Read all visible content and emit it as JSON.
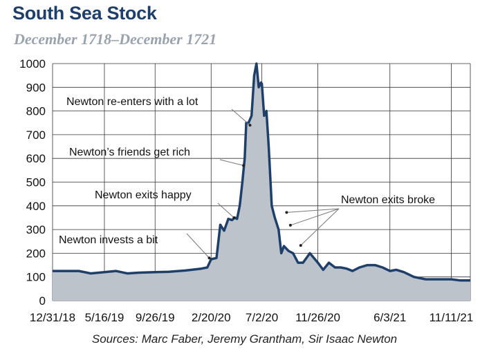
{
  "header": {
    "title": "South Sea Stock",
    "subtitle": "December 1718–December 1721"
  },
  "footer": {
    "source": "Sources: Marc Faber, Jeremy Grantham, Sir Isaac Newton"
  },
  "colors": {
    "title": "#1f3f6b",
    "line": "#1f3f6b",
    "fill": "#bdc3cb",
    "grid": "#333333"
  },
  "chart_data": {
    "type": "area",
    "xlabel": "",
    "ylabel": "",
    "ylim": [
      0,
      1000
    ],
    "yticks": [
      0,
      100,
      200,
      300,
      400,
      500,
      600,
      700,
      800,
      900,
      1000
    ],
    "xlim": [
      "1718-12-31",
      "1721-12-31"
    ],
    "xtick_labels": [
      "12/31/18",
      "5/16/19",
      "9/26/19",
      "2/20/20",
      "7/2/20",
      "11/26/20",
      "6/3/21",
      "11/11/21"
    ],
    "xtick_dates": [
      "1718-12-31",
      "1719-05-16",
      "1719-09-26",
      "1720-02-20",
      "1720-07-02",
      "1720-11-26",
      "1721-06-03",
      "1721-11-11"
    ],
    "grid": true,
    "series": [
      {
        "x": [
          "1718-12-31",
          "1719-01-20",
          "1719-03-10",
          "1719-04-10",
          "1719-05-16",
          "1719-06-15",
          "1719-07-15",
          "1719-08-15",
          "1719-09-26",
          "1719-11-01",
          "1719-12-15",
          "1720-01-25",
          "1720-02-10",
          "1720-02-20",
          "1720-03-05",
          "1720-03-15",
          "1720-03-25",
          "1720-04-05",
          "1720-04-15",
          "1720-04-22",
          "1720-04-28",
          "1720-05-05",
          "1720-05-12",
          "1720-05-18",
          "1720-05-22",
          "1720-05-28",
          "1720-06-05",
          "1720-06-12",
          "1720-06-18",
          "1720-06-24",
          "1720-06-30",
          "1720-07-02",
          "1720-07-08",
          "1720-07-14",
          "1720-07-20",
          "1720-07-28",
          "1720-08-05",
          "1720-08-15",
          "1720-08-22",
          "1720-08-29",
          "1720-09-10",
          "1720-09-22",
          "1720-10-05",
          "1720-10-18",
          "1720-11-05",
          "1720-11-26",
          "1720-12-10",
          "1720-12-25",
          "1721-01-10",
          "1721-01-25",
          "1721-02-10",
          "1721-02-25",
          "1721-03-15",
          "1721-04-05",
          "1721-04-25",
          "1721-05-15",
          "1721-06-03",
          "1721-06-20",
          "1721-07-10",
          "1721-08-05",
          "1721-09-05",
          "1721-09-25",
          "1721-10-10",
          "1721-10-25",
          "1721-11-11",
          "1721-12-05",
          "1721-12-31"
        ],
        "y": [
          125,
          125,
          125,
          115,
          120,
          125,
          115,
          118,
          120,
          122,
          127,
          135,
          140,
          175,
          180,
          320,
          295,
          345,
          340,
          350,
          345,
          400,
          500,
          600,
          750,
          750,
          780,
          950,
          1000,
          900,
          920,
          915,
          780,
          800,
          650,
          400,
          350,
          300,
          200,
          230,
          210,
          200,
          160,
          160,
          200,
          160,
          130,
          160,
          140,
          140,
          135,
          125,
          140,
          150,
          150,
          140,
          125,
          130,
          120,
          100,
          90,
          90,
          90,
          90,
          90,
          85,
          85
        ]
      }
    ],
    "annotations": [
      {
        "text": "Newton invests a bit",
        "date": "1720-02-15",
        "value": 180
      },
      {
        "text": "Newton exits happy",
        "date": "1720-04-20",
        "value": 350
      },
      {
        "text": "Newton’s friends get rich",
        "date": "1720-05-15",
        "value": 570
      },
      {
        "text": "Newton re-enters with a lot",
        "date": "1720-06-01",
        "value": 740
      },
      {
        "text": "Newton exits broke",
        "date": "1720-09-10",
        "value": 375
      }
    ]
  }
}
